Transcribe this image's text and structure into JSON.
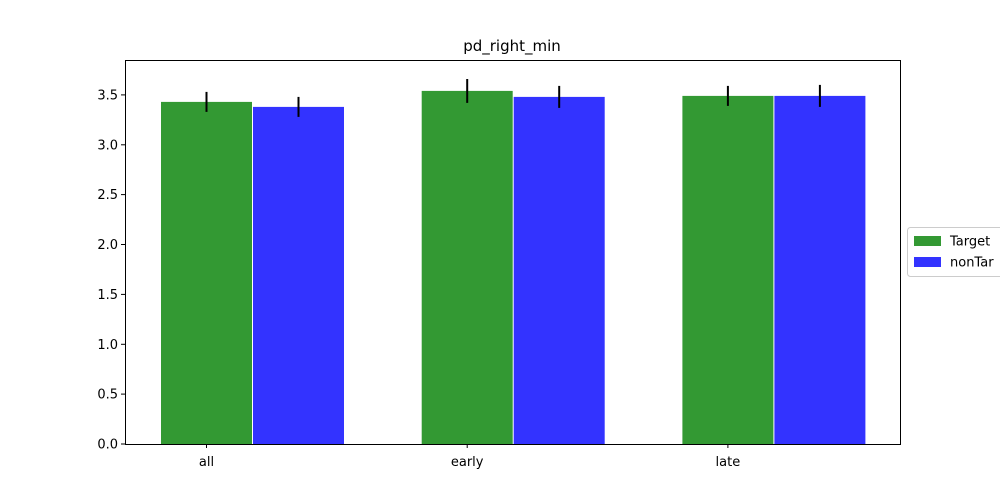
{
  "chart_data": {
    "type": "bar",
    "title": "pd_right_min",
    "xlabel": "",
    "ylabel": "",
    "categories": [
      "all",
      "early",
      "late"
    ],
    "ylim": [
      0,
      3.85
    ],
    "yticks": [
      "0.0",
      "0.5",
      "1.0",
      "1.5",
      "2.0",
      "2.5",
      "3.0",
      "3.5"
    ],
    "grid": false,
    "legend_position": "right, outside plot, partially clipped",
    "series": [
      {
        "name": "Target",
        "legend_text": "Target",
        "color": "#339933",
        "values": [
          3.43,
          3.54,
          3.49
        ],
        "errors": [
          0.1,
          0.12,
          0.1
        ]
      },
      {
        "name": "nonTarget",
        "legend_text": "nonTar",
        "color": "#3333ff",
        "values": [
          3.38,
          3.48,
          3.49
        ],
        "errors": [
          0.1,
          0.11,
          0.11
        ]
      }
    ]
  }
}
